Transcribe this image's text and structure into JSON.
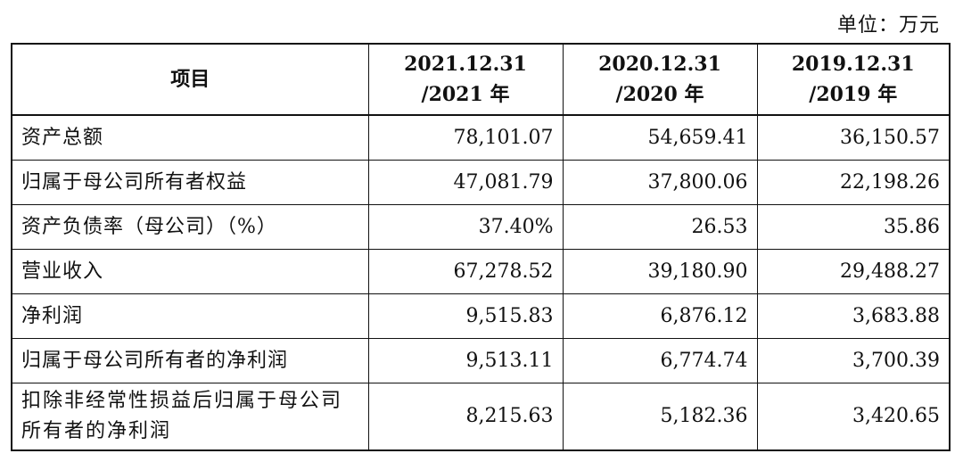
{
  "unit_label": "单位：万元",
  "table": {
    "header": {
      "item": "项目",
      "periods": [
        {
          "line1": "2021.12.31",
          "line2": "/2021 年"
        },
        {
          "line1": "2020.12.31",
          "line2": "/2020 年"
        },
        {
          "line1": "2019.12.31",
          "line2": "/2019 年"
        }
      ]
    },
    "rows": [
      {
        "label": "资产总额",
        "values": [
          "78,101.07",
          "54,659.41",
          "36,150.57"
        ]
      },
      {
        "label": "归属于母公司所有者权益",
        "values": [
          "47,081.79",
          "37,800.06",
          "22,198.26"
        ]
      },
      {
        "label": "资产负债率（母公司）（%）",
        "values": [
          "37.40%",
          "26.53",
          "35.86"
        ]
      },
      {
        "label": "营业收入",
        "values": [
          "67,278.52",
          "39,180.90",
          "29,488.27"
        ]
      },
      {
        "label": "净利润",
        "values": [
          "9,515.83",
          "6,876.12",
          "3,683.88"
        ]
      },
      {
        "label": "归属于母公司所有者的净利润",
        "values": [
          "9,513.11",
          "6,774.74",
          "3,700.39"
        ]
      },
      {
        "label": "扣除非经常性损益后归属于母公司所有者的净利润",
        "values": [
          "8,215.63",
          "5,182.36",
          "3,420.65"
        ]
      }
    ]
  }
}
